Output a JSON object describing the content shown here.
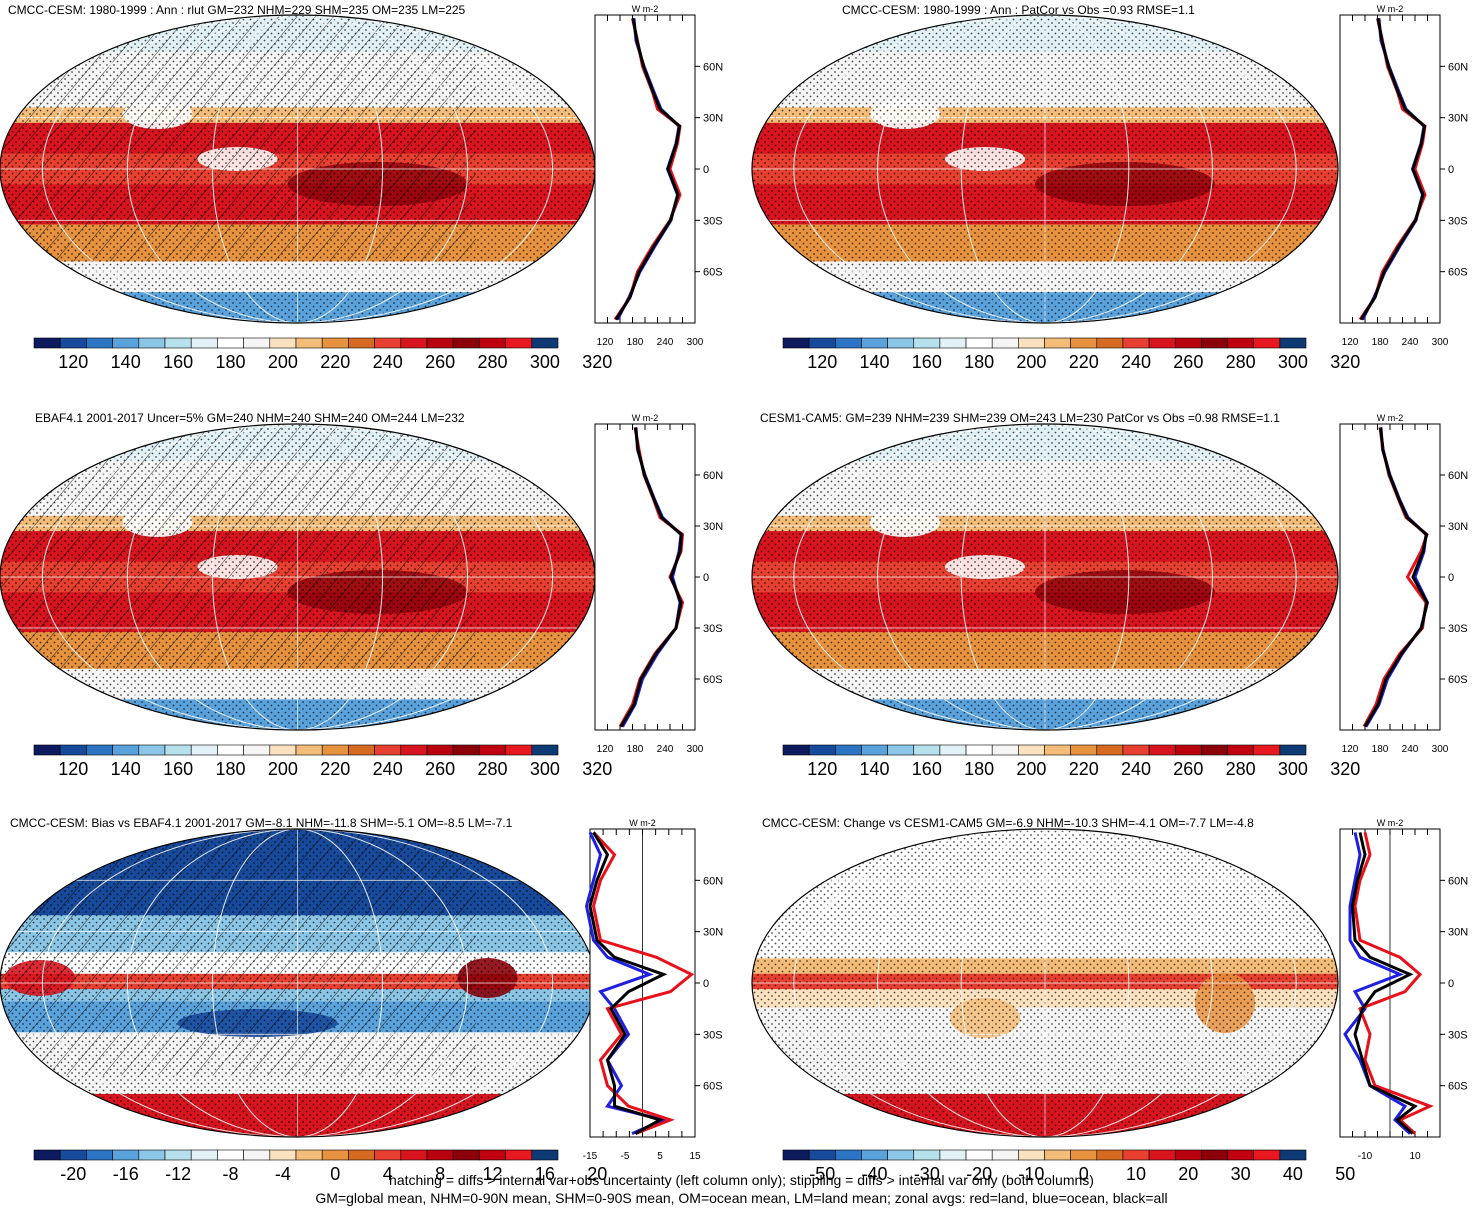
{
  "colorscales": {
    "abs": [
      "#0d1a5e",
      "#184a9c",
      "#2c75c4",
      "#5aa2dc",
      "#8cc6e6",
      "#b6e0ec",
      "#e2f1f6",
      "#ffffff",
      "#f5f5f5",
      "#fae1bf",
      "#f3bd79",
      "#e6923f",
      "#d76a21",
      "#e84030",
      "#d8141e",
      "#b8000f",
      "#8c000a",
      "#c00010",
      "#e81820",
      "#0d3a74"
    ],
    "diff": [
      "#0d1a5e",
      "#184a9c",
      "#2c75c4",
      "#5aa2dc",
      "#8cc6e6",
      "#b6e0ec",
      "#e2f1f6",
      "#ffffff",
      "#f5f5f5",
      "#fae1bf",
      "#f3bd79",
      "#e6923f",
      "#d76a21",
      "#e84030",
      "#d8141e",
      "#b8000f",
      "#8c000a",
      "#c00010",
      "#e81820",
      "#0d3a74"
    ]
  },
  "chart_data": [
    {
      "id": "p1",
      "type": "heatmap",
      "title": "CMCC-CESM: 1980-1999 : Ann : rlut GM=232 NHM=229 SHM=235 OM=235 LM=225",
      "colorbar_labels": [
        "120",
        "140",
        "160",
        "180",
        "200",
        "220",
        "240",
        "260",
        "280",
        "300",
        "320"
      ],
      "zonal": {
        "unit": "W m-2",
        "xticks": [
          "120",
          "180",
          "240",
          "300"
        ],
        "xlim": [
          100,
          300
        ],
        "lat": [
          -88,
          -75,
          -60,
          -45,
          -30,
          -15,
          0,
          15,
          25,
          35,
          45,
          60,
          75,
          88
        ],
        "land": [
          140,
          170,
          185,
          215,
          250,
          270,
          250,
          265,
          270,
          225,
          215,
          195,
          185,
          175
        ],
        "ocean": [
          145,
          168,
          190,
          220,
          252,
          265,
          245,
          262,
          268,
          232,
          218,
          198,
          182,
          178
        ],
        "all": [
          142,
          170,
          188,
          218,
          251,
          266,
          246,
          263,
          269,
          230,
          216,
          197,
          184,
          176
        ]
      },
      "yticks": [
        "60N",
        "30N",
        "0",
        "30S",
        "60S"
      ]
    },
    {
      "id": "p2",
      "type": "heatmap",
      "title": "CMCC-CESM: 1980-1999 : Ann : PatCor vs Obs =0.93 RMSE=1.1",
      "colorbar_labels": [
        "120",
        "140",
        "160",
        "180",
        "200",
        "220",
        "240",
        "260",
        "280",
        "300",
        "320"
      ],
      "zonal": {
        "unit": "W m-2",
        "xticks": [
          "120",
          "180",
          "240",
          "300"
        ],
        "xlim": [
          100,
          300
        ],
        "lat": [
          -88,
          -75,
          -60,
          -45,
          -30,
          -15,
          0,
          15,
          25,
          35,
          45,
          60,
          75,
          88
        ],
        "land": [
          140,
          170,
          185,
          215,
          250,
          270,
          250,
          265,
          270,
          225,
          215,
          195,
          185,
          175
        ],
        "ocean": [
          145,
          168,
          190,
          220,
          252,
          265,
          245,
          262,
          268,
          232,
          218,
          198,
          182,
          178
        ],
        "all": [
          142,
          170,
          188,
          218,
          251,
          266,
          246,
          263,
          269,
          230,
          216,
          197,
          184,
          176
        ]
      },
      "yticks": [
        "60N",
        "30N",
        "0",
        "30S",
        "60S"
      ]
    },
    {
      "id": "p3",
      "type": "heatmap",
      "title": "EBAF4.1 2001-2017 Uncer=5% GM=240 NHM=240 SHM=240 OM=244 LM=232",
      "colorbar_labels": [
        "120",
        "140",
        "160",
        "180",
        "200",
        "220",
        "240",
        "260",
        "280",
        "300",
        "320"
      ],
      "zonal": {
        "unit": "W m-2",
        "xticks": [
          "120",
          "180",
          "240",
          "300"
        ],
        "xlim": [
          100,
          300
        ],
        "lat": [
          -88,
          -75,
          -60,
          -45,
          -30,
          -15,
          0,
          15,
          25,
          35,
          45,
          60,
          75,
          88
        ],
        "land": [
          150,
          175,
          190,
          220,
          262,
          275,
          250,
          272,
          275,
          230,
          218,
          198,
          188,
          180
        ],
        "ocean": [
          155,
          180,
          195,
          225,
          262,
          270,
          255,
          268,
          272,
          235,
          220,
          200,
          185,
          182
        ],
        "all": [
          152,
          178,
          192,
          222,
          262,
          272,
          252,
          270,
          273,
          233,
          219,
          199,
          186,
          181
        ]
      },
      "yticks": [
        "60N",
        "30N",
        "0",
        "30S",
        "60S"
      ]
    },
    {
      "id": "p4",
      "type": "heatmap",
      "title": "CESM1-CAM5: GM=239 NHM=239 SHM=239 OM=243 LM=230 PatCor vs Obs =0.98 RMSE=1.1",
      "colorbar_labels": [
        "120",
        "140",
        "160",
        "180",
        "200",
        "220",
        "240",
        "260",
        "280",
        "300",
        "320"
      ],
      "zonal": {
        "unit": "W m-2",
        "xticks": [
          "120",
          "180",
          "240",
          "300"
        ],
        "xlim": [
          100,
          300
        ],
        "lat": [
          -88,
          -75,
          -60,
          -45,
          -30,
          -15,
          0,
          15,
          25,
          35,
          45,
          60,
          75,
          88
        ],
        "land": [
          148,
          172,
          188,
          220,
          265,
          272,
          235,
          262,
          274,
          232,
          218,
          198,
          186,
          180
        ],
        "ocean": [
          152,
          178,
          195,
          225,
          262,
          275,
          250,
          268,
          272,
          236,
          220,
          200,
          185,
          182
        ],
        "all": [
          150,
          176,
          192,
          223,
          263,
          274,
          246,
          266,
          273,
          234,
          219,
          199,
          186,
          181
        ]
      },
      "yticks": [
        "60N",
        "30N",
        "0",
        "30S",
        "60S"
      ]
    },
    {
      "id": "p5",
      "type": "heatmap",
      "title": "CMCC-CESM: Bias vs EBAF4.1 2001-2017 GM=-8.1 NHM=-11.8 SHM=-5.1 OM=-8.5 LM=-7.1",
      "colorbar_labels": [
        "-20",
        "-16",
        "-12",
        "-8",
        "-4",
        "0",
        "4",
        "8",
        "12",
        "16",
        "20"
      ],
      "zonal": {
        "unit": "W m-2",
        "xticks": [
          "-15",
          "-5",
          "5",
          "15"
        ],
        "xlim": [
          -15,
          15
        ],
        "lat": [
          -88,
          -80,
          -72,
          -60,
          -45,
          -30,
          -15,
          -5,
          5,
          15,
          25,
          45,
          60,
          75,
          88
        ],
        "land": [
          -2,
          8,
          -4,
          -10,
          -12,
          -6,
          -10,
          8,
          14,
          4,
          -12,
          -14,
          -12,
          -8,
          -14
        ],
        "ocean": [
          -3,
          6,
          -10,
          -6,
          -10,
          -4,
          -8,
          -12,
          2,
          -10,
          -14,
          -16,
          -14,
          -12,
          -15
        ],
        "all": [
          -2,
          5,
          -8,
          -8,
          -10,
          -5,
          -9,
          -4,
          6,
          -8,
          -13,
          -15,
          -13,
          -10,
          -14
        ]
      },
      "yticks": [
        "60N",
        "30N",
        "0",
        "30S",
        "60S"
      ]
    },
    {
      "id": "p6",
      "type": "heatmap",
      "title": "CMCC-CESM: Change vs CESM1-CAM5 GM=-6.9 NHM=-10.3 SHM=-4.1 OM=-7.7 LM=-4.8",
      "colorbar_labels": [
        "-50",
        "-40",
        "-30",
        "-20",
        "-10",
        "0",
        "10",
        "20",
        "30",
        "40",
        "50"
      ],
      "zonal": {
        "unit": "W m-2",
        "xticks": [
          "-10",
          "10"
        ],
        "xlim": [
          -20,
          20
        ],
        "lat": [
          -88,
          -80,
          -72,
          -60,
          -45,
          -30,
          -15,
          -5,
          5,
          15,
          25,
          45,
          60,
          75,
          88
        ],
        "land": [
          10,
          4,
          16,
          -6,
          -10,
          -8,
          -12,
          6,
          12,
          4,
          -12,
          -14,
          -12,
          -8,
          -10
        ],
        "ocean": [
          8,
          2,
          6,
          -8,
          -12,
          -18,
          -10,
          -14,
          4,
          -12,
          -16,
          -16,
          -14,
          -12,
          -14
        ],
        "all": [
          9,
          3,
          10,
          -8,
          -11,
          -14,
          -11,
          -6,
          8,
          -8,
          -14,
          -15,
          -13,
          -10,
          -12
        ]
      },
      "yticks": [
        "60N",
        "30N",
        "0",
        "30S",
        "60S"
      ]
    }
  ],
  "footer": {
    "line1": "hatching = diffs > internal var+obs uncertainty (left column only); stippling = diffs > internal var only (both columns)",
    "line2": "GM=global mean, NHM=0-90N mean, SHM=0-90S mean, OM=ocean mean, LM=land mean; zonal avgs: red=land, blue=ocean, black=all"
  }
}
